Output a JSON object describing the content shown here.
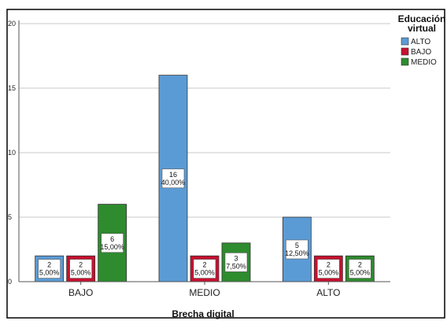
{
  "chart_data": {
    "type": "bar",
    "xlabel": "Brecha digital",
    "ylabel": "",
    "ylim": [
      0,
      20
    ],
    "yticks": [
      "0",
      "5",
      "10",
      "15",
      "20"
    ],
    "grid": true,
    "categories": [
      "BAJO",
      "MEDIO",
      "ALTO"
    ],
    "legend": {
      "title_lines": [
        "Educación",
        "virtual"
      ],
      "placement": "top-right"
    },
    "series": [
      {
        "name": "ALTO",
        "color": "#5b9bd5",
        "values": [
          2,
          16,
          5
        ],
        "labels": [
          [
            "2",
            "5,00%"
          ],
          [
            "16",
            "40,00%"
          ],
          [
            "5",
            "12,50%"
          ]
        ]
      },
      {
        "name": "BAJO",
        "color": "#c8102e",
        "values": [
          2,
          2,
          2
        ],
        "labels": [
          [
            "2",
            "5,00%"
          ],
          [
            "2",
            "5,00%"
          ],
          [
            "2",
            "5,00%"
          ]
        ]
      },
      {
        "name": "MEDIO",
        "color": "#2e8b2e",
        "values": [
          6,
          3,
          2
        ],
        "labels": [
          [
            "6",
            "15,00%"
          ],
          [
            "3",
            "7,50%"
          ],
          [
            "2",
            "5,00%"
          ]
        ]
      }
    ]
  }
}
